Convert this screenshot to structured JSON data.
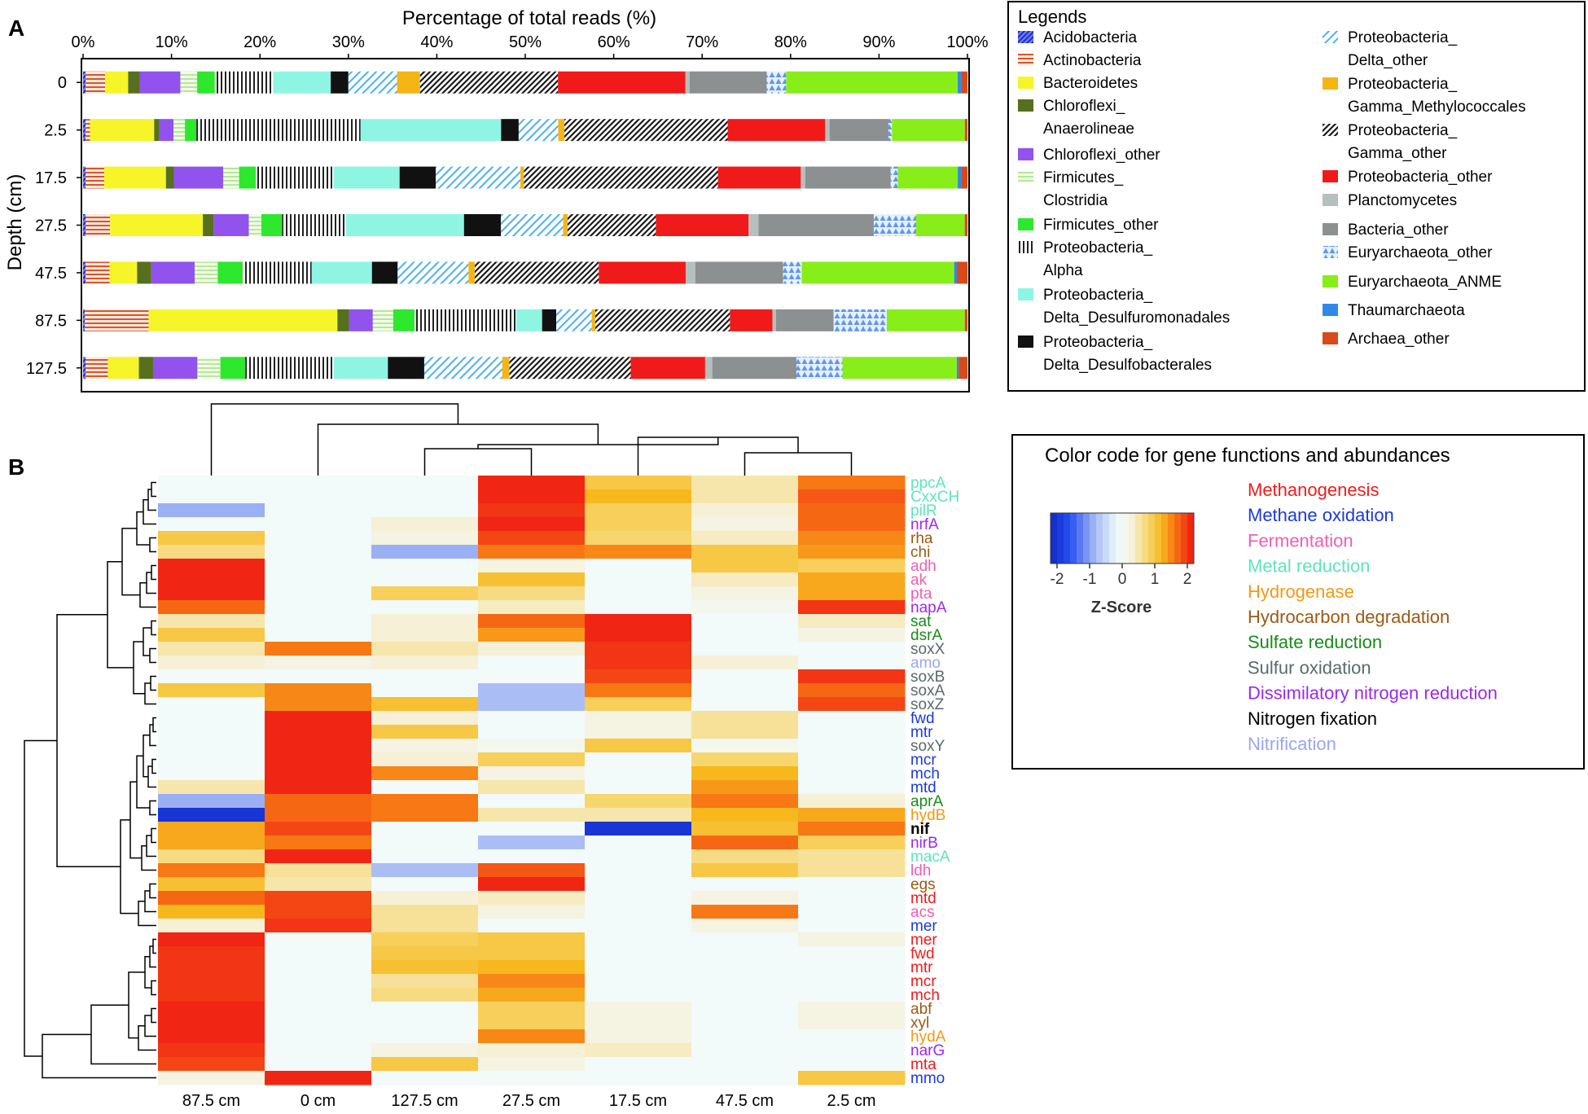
{
  "chart_data": [
    {
      "panel": "A",
      "type": "bar",
      "stacked": true,
      "orientation": "horizontal",
      "title": "Percentage of total reads (%)",
      "xlabel": "Percentage of total reads (%)",
      "ylabel": "Depth (cm)",
      "xlim": [
        0,
        100
      ],
      "ticks": [
        "0%",
        "10%",
        "20%",
        "30%",
        "40%",
        "50%",
        "60%",
        "70%",
        "80%",
        "90%",
        "100%"
      ],
      "categories": [
        "0",
        "2.5",
        "17.5",
        "27.5",
        "47.5",
        "87.5",
        "127.5"
      ],
      "legend_title": "Legends",
      "series": [
        {
          "name": "Acidobacteria",
          "color": "#3a3ad8",
          "pattern": "hatch-blue",
          "values": [
            0.3,
            0.3,
            0.3,
            0.3,
            0.3,
            0.2,
            0.3
          ]
        },
        {
          "name": "Actinobacteria",
          "color": "#d8552a",
          "pattern": "hlines",
          "values": [
            2.2,
            0.5,
            2.1,
            2.7,
            2.7,
            7.2,
            2.5
          ]
        },
        {
          "name": "Bacteroidetes",
          "color": "#f5f52a",
          "pattern": "solid",
          "values": [
            2.6,
            7.3,
            7.0,
            10.3,
            3.1,
            21.3,
            3.5
          ]
        },
        {
          "name": "Chloroflexi_\nAnaerolineae",
          "color": "#56701e",
          "pattern": "solid",
          "values": [
            1.3,
            0.6,
            0.9,
            1.2,
            1.6,
            1.3,
            1.6
          ]
        },
        {
          "name": "Chloroflexi_other",
          "color": "#9152ee",
          "pattern": "solid",
          "values": [
            4.6,
            1.6,
            5.6,
            3.9,
            4.9,
            2.7,
            5.0
          ]
        },
        {
          "name": "Firmicutes_\nClostridia",
          "color": "#d9f5c0",
          "pattern": "hlines",
          "values": [
            1.9,
            1.3,
            1.8,
            1.4,
            2.6,
            2.3,
            2.6
          ]
        },
        {
          "name": "Firmicutes_other",
          "color": "#2ee82e",
          "pattern": "solid",
          "values": [
            2.0,
            1.3,
            1.9,
            2.3,
            2.8,
            2.4,
            2.8
          ]
        },
        {
          "name": "Proteobacteria_\nAlpha",
          "color": "#222222",
          "pattern": "vlines",
          "values": [
            6.6,
            18.7,
            8.8,
            7.1,
            7.8,
            11.5,
            10.0
          ]
        },
        {
          "name": "Proteobacteria_\nDelta_Desulfuromonadales",
          "color": "#8ff5e3",
          "pattern": "solid",
          "values": [
            6.5,
            16.0,
            7.5,
            13.1,
            6.8,
            2.9,
            6.1
          ]
        },
        {
          "name": "Proteobacteria_\nDelta_Desulfobacterales",
          "color": "#111111",
          "pattern": "solid",
          "values": [
            2.0,
            2.0,
            4.1,
            4.1,
            2.9,
            1.6,
            4.1
          ]
        },
        {
          "name": "Proteobacteria_\nDelta_other",
          "color": "#3aa6ee",
          "pattern": "hatch-light",
          "values": [
            5.5,
            4.5,
            9.6,
            6.9,
            8.0,
            4.0,
            8.8
          ]
        },
        {
          "name": "Proteobacteria_\nGamma_Methylococcales",
          "color": "#f5b516",
          "pattern": "solid",
          "values": [
            2.6,
            0.7,
            0.4,
            0.5,
            0.7,
            0.4,
            0.8
          ]
        },
        {
          "name": "Proteobacteria_\nGamma_other",
          "color": "#222222",
          "pattern": "hatch-dark",
          "values": [
            15.6,
            18.6,
            22.0,
            9.8,
            14.0,
            15.2,
            13.7
          ]
        },
        {
          "name": "Proteobacteria_other",
          "color": "#f01a1a",
          "pattern": "solid",
          "values": [
            14.4,
            11.1,
            9.4,
            10.3,
            9.8,
            4.8,
            8.4
          ]
        },
        {
          "name": "Planctomycetes",
          "color": "#b5bfbd",
          "pattern": "solid",
          "values": [
            0.5,
            0.5,
            0.5,
            1.1,
            1.1,
            0.4,
            0.8
          ]
        },
        {
          "name": "Bacteria_other",
          "color": "#8c9090",
          "pattern": "solid",
          "values": [
            8.7,
            6.7,
            9.7,
            12.8,
            9.9,
            6.5,
            9.5
          ]
        },
        {
          "name": "Euryarchaeota_other",
          "color": "#6fa3e8",
          "pattern": "triangles",
          "values": [
            2.2,
            0.4,
            0.8,
            4.7,
            2.1,
            6.0,
            5.2
          ]
        },
        {
          "name": "Euryarchaeota_ANME",
          "color": "#88ee1a",
          "pattern": "solid",
          "values": [
            19.4,
            8.3,
            6.8,
            5.4,
            17.2,
            8.8,
            12.9
          ]
        },
        {
          "name": "Thaumarchaeota",
          "color": "#2e8ae6",
          "pattern": "solid",
          "values": [
            0.4,
            0.0,
            0.4,
            0.0,
            0.3,
            0.0,
            0.2
          ]
        },
        {
          "name": "Archaea_other",
          "color": "#d84a1a",
          "pattern": "solid",
          "values": [
            0.7,
            0.3,
            0.7,
            0.3,
            1.2,
            0.3,
            1.0
          ]
        }
      ]
    },
    {
      "panel": "B",
      "type": "heatmap",
      "columns": [
        "87.5 cm",
        "0 cm",
        "127.5 cm",
        "27.5 cm",
        "17.5 cm",
        "47.5 cm",
        "2.5 cm"
      ],
      "colorbar_label": "Z-Score",
      "colorbar_ticks": [
        "-2",
        "-1",
        "0",
        "1",
        "2"
      ],
      "zlim": [
        -2.2,
        2.2
      ],
      "legend_title": "Color code for gene functions and abundances",
      "categories": [
        {
          "name": "Methanogenesis",
          "color": "#ee1c1c"
        },
        {
          "name": "Methane oxidation",
          "color": "#1c3ad8"
        },
        {
          "name": "Fermentation",
          "color": "#ee5fb2"
        },
        {
          "name": "Metal reduction",
          "color": "#5fe3bd"
        },
        {
          "name": "Hydrogenase",
          "color": "#f09a14"
        },
        {
          "name": "Hydrocarbon degradation",
          "color": "#9a5a14"
        },
        {
          "name": "Sulfate reduction",
          "color": "#1a8a1a"
        },
        {
          "name": "Sulfur oxidation",
          "color": "#5a6a6a"
        },
        {
          "name": "Dissimilatory nitrogen reduction",
          "color": "#9a2ae8"
        },
        {
          "name": "Nitrogen fixation",
          "color": "#000000"
        },
        {
          "name": "Nitrification",
          "color": "#9aa6ee"
        }
      ],
      "rows": [
        {
          "gene": "ppcA",
          "cat": 3,
          "z": [
            0.0,
            0.0,
            0.0,
            2.1,
            1.0,
            0.5,
            1.6
          ]
        },
        {
          "gene": "CxxCH",
          "cat": 3,
          "z": [
            0.0,
            0.0,
            0.0,
            2.1,
            1.2,
            0.5,
            1.8
          ]
        },
        {
          "gene": "pilR",
          "cat": 3,
          "z": [
            -0.9,
            0.0,
            0.0,
            2.0,
            0.9,
            0.3,
            1.7
          ]
        },
        {
          "gene": "nrfA",
          "cat": 8,
          "z": [
            0.0,
            0.0,
            0.3,
            2.1,
            0.9,
            0.2,
            1.7
          ]
        },
        {
          "gene": "rha",
          "cat": 5,
          "z": [
            1.0,
            0.0,
            0.2,
            1.9,
            0.8,
            0.4,
            1.5
          ]
        },
        {
          "gene": "chi",
          "cat": 5,
          "z": [
            0.7,
            0.0,
            -0.9,
            1.6,
            1.5,
            1.0,
            1.4
          ]
        },
        {
          "gene": "adh",
          "cat": 2,
          "z": [
            2.1,
            0.0,
            0.0,
            0.2,
            0.0,
            1.0,
            0.9
          ]
        },
        {
          "gene": "ak",
          "cat": 2,
          "z": [
            2.1,
            0.0,
            0.0,
            1.1,
            0.0,
            0.4,
            1.3
          ]
        },
        {
          "gene": "pta",
          "cat": 2,
          "z": [
            2.1,
            0.0,
            0.9,
            0.7,
            0.0,
            0.2,
            1.3
          ]
        },
        {
          "gene": "napA",
          "cat": 8,
          "z": [
            1.7,
            0.0,
            0.0,
            0.4,
            0.0,
            0.1,
            2.0
          ]
        },
        {
          "gene": "sat",
          "cat": 6,
          "z": [
            0.5,
            0.0,
            0.3,
            1.7,
            2.1,
            0.0,
            0.4
          ]
        },
        {
          "gene": "dsrA",
          "cat": 6,
          "z": [
            1.0,
            0.0,
            0.3,
            1.4,
            2.1,
            0.0,
            0.2
          ]
        },
        {
          "gene": "soxX",
          "cat": 7,
          "z": [
            0.5,
            1.6,
            0.5,
            0.3,
            2.0,
            0.0,
            0.0
          ]
        },
        {
          "gene": "amo",
          "cat": 10,
          "z": [
            0.3,
            0.2,
            0.3,
            0.0,
            2.0,
            0.3,
            0.0
          ]
        },
        {
          "gene": "soxB",
          "cat": 7,
          "z": [
            0.0,
            0.0,
            0.0,
            0.0,
            1.9,
            0.0,
            2.0
          ]
        },
        {
          "gene": "soxA",
          "cat": 7,
          "z": [
            1.0,
            1.5,
            0.0,
            -0.8,
            1.6,
            0.0,
            1.7
          ]
        },
        {
          "gene": "soxZ",
          "cat": 7,
          "z": [
            0.0,
            1.5,
            1.1,
            -0.8,
            0.9,
            0.0,
            1.9
          ]
        },
        {
          "gene": "fwd",
          "cat": 1,
          "z": [
            0.0,
            2.1,
            0.3,
            0.0,
            0.2,
            0.6,
            0.0
          ]
        },
        {
          "gene": "mtr",
          "cat": 1,
          "z": [
            0.0,
            2.1,
            1.0,
            0.0,
            0.2,
            0.6,
            0.0
          ]
        },
        {
          "gene": "soxY",
          "cat": 7,
          "z": [
            0.0,
            2.1,
            0.2,
            0.1,
            1.0,
            0.1,
            0.0
          ]
        },
        {
          "gene": "mcr",
          "cat": 1,
          "z": [
            0.0,
            2.1,
            0.3,
            0.9,
            0.0,
            0.8,
            0.0
          ]
        },
        {
          "gene": "mch",
          "cat": 1,
          "z": [
            0.0,
            2.1,
            1.5,
            0.2,
            0.0,
            1.2,
            0.0
          ]
        },
        {
          "gene": "mtd",
          "cat": 1,
          "z": [
            0.5,
            2.1,
            0.0,
            0.5,
            0.0,
            1.4,
            0.0
          ]
        },
        {
          "gene": "aprA",
          "cat": 6,
          "z": [
            -0.9,
            1.7,
            1.6,
            0.0,
            0.8,
            1.6,
            0.3
          ]
        },
        {
          "gene": "hydB",
          "cat": 4,
          "z": [
            -2.0,
            1.7,
            1.6,
            0.5,
            0.5,
            1.2,
            1.3
          ]
        },
        {
          "gene": "nif",
          "cat": 9,
          "z": [
            1.3,
            1.9,
            0.0,
            0.0,
            -2.0,
            1.1,
            1.6
          ]
        },
        {
          "gene": "nirB",
          "cat": 8,
          "z": [
            1.3,
            1.6,
            0.0,
            -0.8,
            0.0,
            1.7,
            0.9
          ]
        },
        {
          "gene": "macA",
          "cat": 3,
          "z": [
            0.7,
            2.1,
            0.0,
            0.0,
            0.0,
            0.7,
            0.6
          ]
        },
        {
          "gene": "ldh",
          "cat": 2,
          "z": [
            1.6,
            0.6,
            -0.8,
            1.8,
            0.0,
            1.0,
            0.6
          ]
        },
        {
          "gene": "egs",
          "cat": 5,
          "z": [
            1.1,
            0.5,
            0.0,
            2.1,
            0.0,
            0.0,
            0.0
          ]
        },
        {
          "gene": "mtd",
          "cat": 0,
          "z": [
            1.7,
            1.9,
            0.3,
            0.4,
            0.0,
            0.2,
            0.0
          ]
        },
        {
          "gene": "acs",
          "cat": 2,
          "z": [
            1.2,
            1.9,
            0.6,
            0.2,
            0.0,
            1.6,
            0.0
          ]
        },
        {
          "gene": "mer",
          "cat": 1,
          "z": [
            0.3,
            2.0,
            0.6,
            0.0,
            0.0,
            0.2,
            0.0
          ]
        },
        {
          "gene": "mer",
          "cat": 0,
          "z": [
            2.1,
            0.0,
            0.9,
            1.0,
            0.0,
            0.0,
            0.2
          ]
        },
        {
          "gene": "fwd",
          "cat": 0,
          "z": [
            2.0,
            0.0,
            1.0,
            1.0,
            0.0,
            0.0,
            0.0
          ]
        },
        {
          "gene": "mtr",
          "cat": 0,
          "z": [
            2.0,
            0.0,
            1.1,
            1.2,
            0.0,
            0.0,
            0.0
          ]
        },
        {
          "gene": "mcr",
          "cat": 0,
          "z": [
            2.0,
            0.0,
            0.6,
            1.5,
            0.0,
            0.0,
            0.0
          ]
        },
        {
          "gene": "mch",
          "cat": 0,
          "z": [
            2.0,
            0.0,
            0.7,
            1.3,
            0.0,
            0.0,
            0.0
          ]
        },
        {
          "gene": "abf",
          "cat": 5,
          "z": [
            2.1,
            0.0,
            0.0,
            0.9,
            0.2,
            0.0,
            0.2
          ]
        },
        {
          "gene": "xyl",
          "cat": 5,
          "z": [
            2.1,
            0.0,
            0.0,
            0.9,
            0.2,
            0.0,
            0.2
          ]
        },
        {
          "gene": "hydA",
          "cat": 4,
          "z": [
            2.1,
            0.0,
            0.0,
            1.5,
            0.2,
            0.0,
            0.0
          ]
        },
        {
          "gene": "narG",
          "cat": 8,
          "z": [
            2.0,
            0.0,
            0.2,
            0.3,
            0.4,
            0.0,
            0.0
          ]
        },
        {
          "gene": "mta",
          "cat": 0,
          "z": [
            1.9,
            0.0,
            1.0,
            0.2,
            0.0,
            0.0,
            0.0
          ]
        },
        {
          "gene": "mmo",
          "cat": 1,
          "z": [
            0.2,
            2.1,
            0.0,
            0.0,
            0.0,
            0.0,
            1.0
          ]
        }
      ]
    }
  ],
  "panel_labels": {
    "a": "A",
    "b": "B"
  }
}
